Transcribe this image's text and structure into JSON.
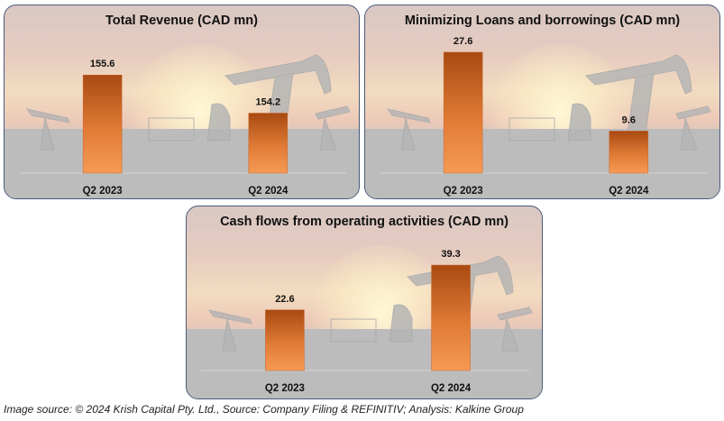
{
  "chart_data": [
    {
      "type": "bar",
      "title": "Total Revenue (CAD mn)",
      "categories": [
        "Q2 2023",
        "Q2 2024"
      ],
      "values": [
        155.6,
        154.2
      ],
      "data_labels": [
        "155.6",
        "154.2"
      ],
      "xlabel": "",
      "ylabel": "",
      "ylim": [
        152.0,
        156.5
      ],
      "grid": false
    },
    {
      "type": "bar",
      "title": "Minimizing Loans and borrowings (CAD mn)",
      "categories": [
        "Q2 2023",
        "Q2 2024"
      ],
      "values": [
        27.6,
        9.6
      ],
      "data_labels": [
        "27.6",
        "9.6"
      ],
      "xlabel": "",
      "ylabel": "",
      "ylim": [
        0,
        28.0
      ],
      "grid": false
    },
    {
      "type": "bar",
      "title": "Cash flows from operating activities (CAD mn)",
      "categories": [
        "Q2 2023",
        "Q2 2024"
      ],
      "values": [
        22.6,
        39.3
      ],
      "data_labels": [
        "22.6",
        "39.3"
      ],
      "xlabel": "",
      "ylabel": "",
      "ylim": [
        0,
        41.0
      ],
      "grid": false
    }
  ],
  "footer": "Image source: © 2024 Krish Capital Pty. Ltd., Source: Company Filing & REFINITIV; Analysis: Kalkine Group",
  "colors": {
    "bar_top": "#a84a12",
    "bar_bottom": "#f59a55",
    "border": "#4a5a7a"
  }
}
